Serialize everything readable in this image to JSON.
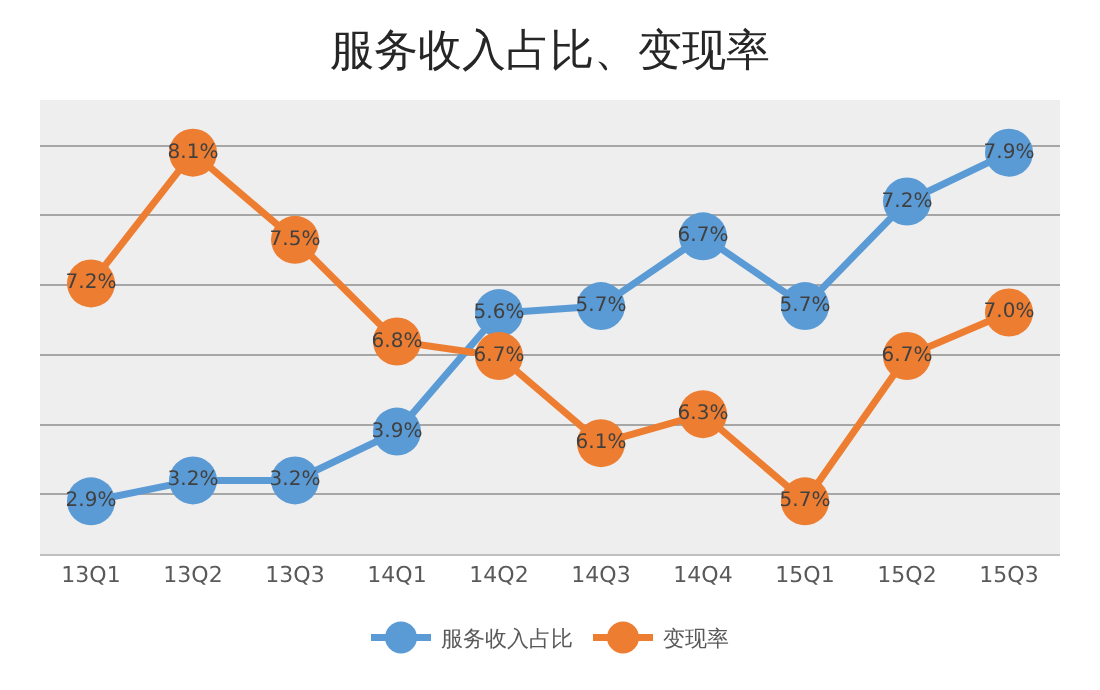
{
  "chart_data": {
    "type": "line",
    "title": "服务收入占比、变现率",
    "categories": [
      "13Q1",
      "13Q2",
      "13Q3",
      "14Q1",
      "14Q2",
      "14Q3",
      "14Q4",
      "15Q1",
      "15Q2",
      "15Q3"
    ],
    "series": [
      {
        "name": "服务收入占比",
        "color": "#5b9bd5",
        "values": [
          2.9,
          3.2,
          3.2,
          3.9,
          5.6,
          5.7,
          6.7,
          5.7,
          7.2,
          7.9
        ],
        "value_labels": [
          "2.9%",
          "3.2%",
          "3.2%",
          "3.9%",
          "5.6%",
          "5.7%",
          "6.7%",
          "5.7%",
          "7.2%",
          "7.9%"
        ]
      },
      {
        "name": "变现率",
        "color": "#ed7d31",
        "axis": "y2",
        "values": [
          7.2,
          8.1,
          7.5,
          6.8,
          6.7,
          6.1,
          6.3,
          5.7,
          6.7,
          7.0
        ],
        "value_labels": [
          "7.2%",
          "8.1%",
          "7.5%",
          "6.8%",
          "6.7%",
          "6.1%",
          "6.3%",
          "5.7%",
          "6.7%",
          "7.0%"
        ]
      }
    ],
    "data_labels": true,
    "grid": "y",
    "legend": "bottom",
    "marker": "circle",
    "line_style": "solid"
  }
}
